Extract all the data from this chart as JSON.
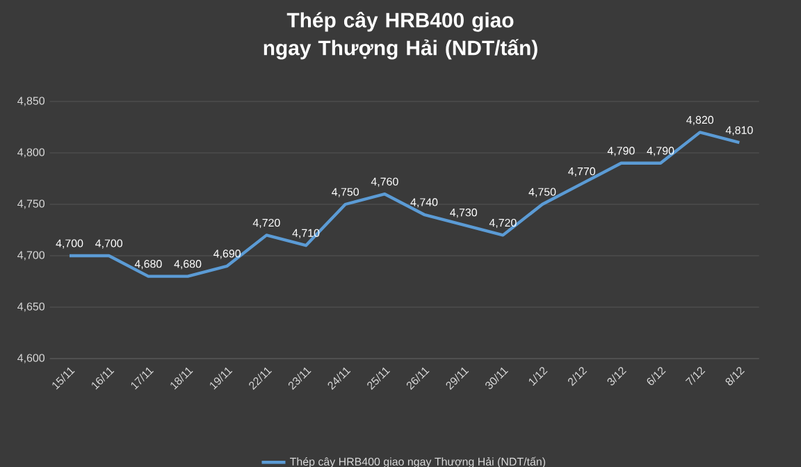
{
  "chart_data": {
    "type": "line",
    "title": "Thép cây HRB400 giao ngay Thượng Hải (NDT/tấn)",
    "categories": [
      "15/11",
      "16/11",
      "17/11",
      "18/11",
      "19/11",
      "22/11",
      "23/11",
      "24/11",
      "25/11",
      "26/11",
      "29/11",
      "30/11",
      "1/12",
      "2/12",
      "3/12",
      "6/12",
      "7/12",
      "8/12"
    ],
    "series": [
      {
        "name": "Thép cây HRB400 giao ngay Thượng Hải (NDT/tấn)",
        "color": "#5b9bd5",
        "values": [
          4700,
          4700,
          4680,
          4680,
          4690,
          4720,
          4710,
          4750,
          4760,
          4740,
          4730,
          4720,
          4750,
          4770,
          4790,
          4790,
          4820,
          4810
        ],
        "value_labels": [
          "4,700",
          "4,700",
          "4,680",
          "4,680",
          "4,690",
          "4,720",
          "4,710",
          "4,750",
          "4,760",
          "4,740",
          "4,730",
          "4,720",
          "4,750",
          "4,770",
          "4,790",
          "4,790",
          "4,820",
          "4,810"
        ]
      }
    ],
    "ylim": [
      4600,
      4850
    ],
    "yticks": [
      {
        "value": 4600,
        "label": "4,600"
      },
      {
        "value": 4650,
        "label": "4,650"
      },
      {
        "value": 4700,
        "label": "4,700"
      },
      {
        "value": 4750,
        "label": "4,750"
      },
      {
        "value": 4800,
        "label": "4,800"
      },
      {
        "value": 4850,
        "label": "4,850"
      }
    ],
    "grid": "y",
    "legend": "bottom",
    "marker": "none",
    "line_style": "solid"
  }
}
